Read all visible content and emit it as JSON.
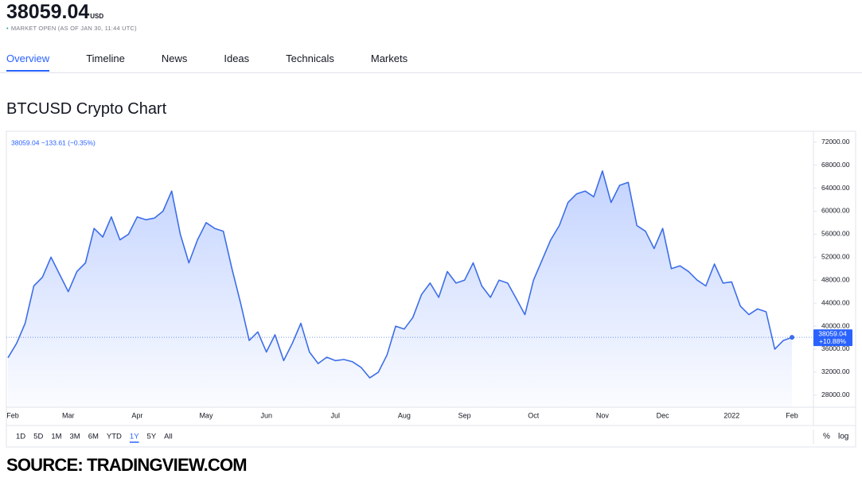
{
  "header": {
    "price": "38059.04",
    "currency": "USD",
    "status": "MARKET OPEN (AS OF JAN 30, 11:44 UTC)"
  },
  "tabs": [
    "Overview",
    "Timeline",
    "News",
    "Ideas",
    "Technicals",
    "Markets"
  ],
  "active_tab": 0,
  "chart_data": {
    "type": "area",
    "title": "BTCUSD Crypto Chart",
    "legend_text": "38059.04 −133.61 (−0.35%)",
    "price_tag": "38059.04",
    "change_tag": "+10.88%",
    "color": "#3d6ee8",
    "categories": [
      "Feb",
      null,
      null,
      null,
      null,
      null,
      null,
      "Mar",
      null,
      null,
      null,
      null,
      null,
      null,
      null,
      "Apr",
      null,
      null,
      null,
      null,
      null,
      null,
      null,
      "May",
      null,
      null,
      null,
      null,
      null,
      null,
      "Jun",
      null,
      null,
      null,
      null,
      null,
      null,
      null,
      "Jul",
      null,
      null,
      null,
      null,
      null,
      null,
      null,
      "Aug",
      null,
      null,
      null,
      null,
      null,
      null,
      "Sep",
      null,
      null,
      null,
      null,
      null,
      null,
      null,
      "Oct",
      null,
      null,
      null,
      null,
      null,
      null,
      null,
      "Nov",
      null,
      null,
      null,
      null,
      null,
      null,
      "Dec",
      null,
      null,
      null,
      null,
      null,
      null,
      null,
      "2022",
      null,
      null,
      null,
      null,
      null,
      null,
      "Feb"
    ],
    "values": [
      34500,
      37000,
      40500,
      47000,
      48500,
      52000,
      49000,
      46000,
      49500,
      51000,
      57000,
      55500,
      59000,
      55000,
      56000,
      59000,
      58500,
      58800,
      60000,
      63500,
      56000,
      51000,
      55000,
      58000,
      57000,
      56500,
      50000,
      44000,
      37500,
      39000,
      35500,
      38500,
      34000,
      37000,
      40500,
      35500,
      33500,
      34600,
      34000,
      34200,
      33800,
      32800,
      31000,
      32000,
      35000,
      40000,
      39500,
      41500,
      45500,
      47500,
      45000,
      49500,
      47500,
      48000,
      51000,
      47000,
      45000,
      48000,
      47500,
      44800,
      42000,
      48000,
      51500,
      55000,
      57500,
      61500,
      63000,
      63500,
      62500,
      67000,
      61500,
      64500,
      65000,
      57500,
      56500,
      53500,
      57000,
      50000,
      50500,
      49500,
      48000,
      47000,
      50800,
      47500,
      47700,
      43500,
      42000,
      43000,
      42500,
      36000,
      37500,
      38059.04
    ],
    "ylim": [
      25900,
      73900
    ],
    "yticks": [
      {
        "value": 28000,
        "label": "28000.00"
      },
      {
        "value": 32000,
        "label": "32000.00"
      },
      {
        "value": 36000,
        "label": "36000.00"
      },
      {
        "value": 40000,
        "label": "40000.00"
      },
      {
        "value": 44000,
        "label": "44000.00"
      },
      {
        "value": 48000,
        "label": "48000.00"
      },
      {
        "value": 52000,
        "label": "52000.00"
      },
      {
        "value": 56000,
        "label": "56000.00"
      },
      {
        "value": 60000,
        "label": "60000.00"
      },
      {
        "value": 64000,
        "label": "64000.00"
      },
      {
        "value": 68000,
        "label": "68000.00"
      },
      {
        "value": 72000,
        "label": "72000.00"
      }
    ],
    "grid": false
  },
  "timeframes": [
    "1D",
    "5D",
    "1M",
    "3M",
    "6M",
    "YTD",
    "1Y",
    "5Y",
    "All"
  ],
  "active_timeframe": 6,
  "scale_options": [
    "%",
    "log"
  ],
  "source": "SOURCE: TRADINGVIEW.COM"
}
